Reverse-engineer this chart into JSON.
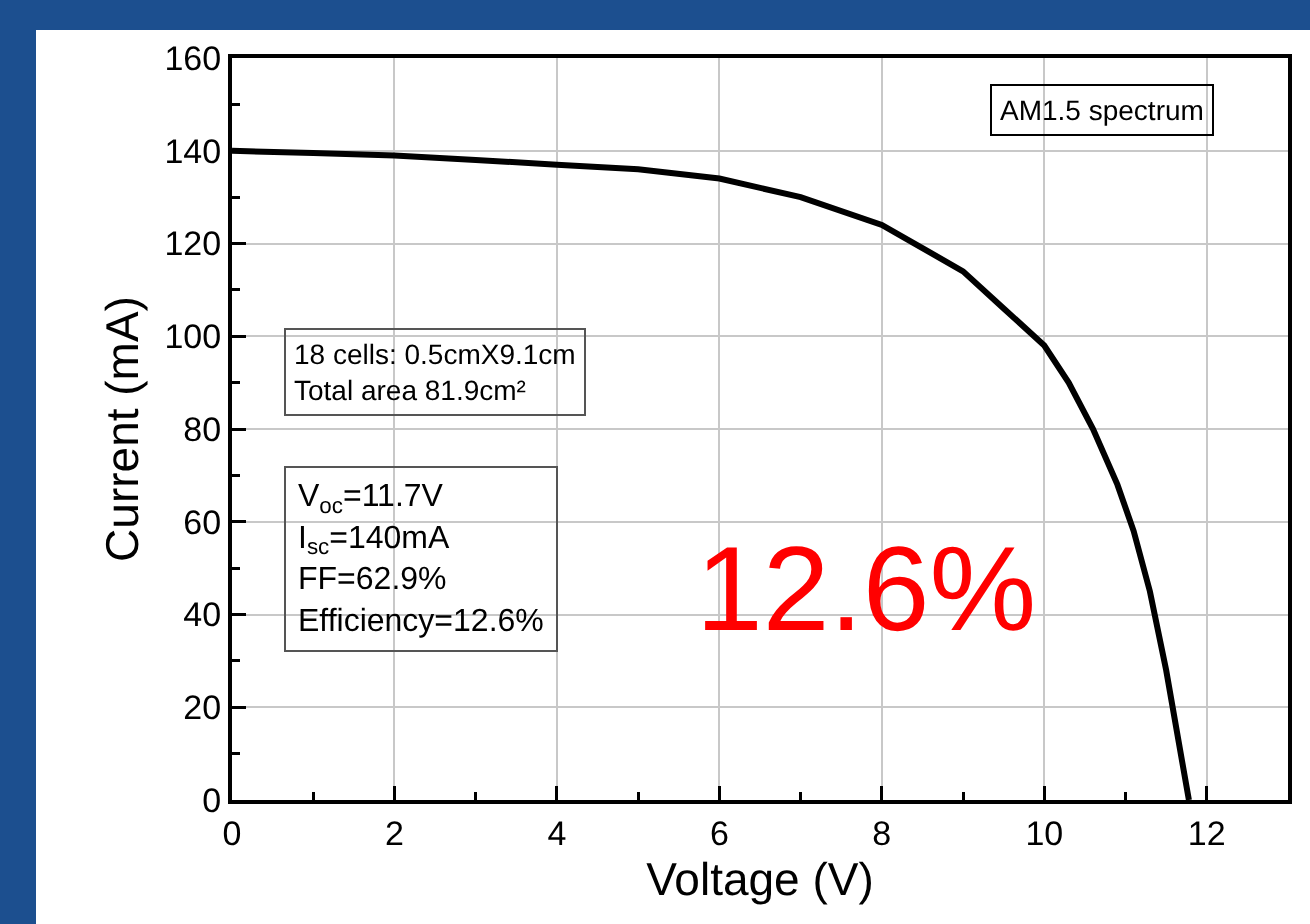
{
  "chart_data": {
    "type": "line",
    "xlabel": "Voltage (V)",
    "ylabel": "Current (mA)",
    "x": [
      0,
      1,
      2,
      3,
      4,
      5,
      6,
      7,
      8,
      8.5,
      9,
      9.5,
      10,
      10.3,
      10.6,
      10.9,
      11.1,
      11.3,
      11.5,
      11.7,
      11.78
    ],
    "series": [
      {
        "color": "#000000",
        "values": [
          140,
          139.5,
          139,
          138,
          137,
          136,
          134,
          130,
          124,
          119,
          114,
          106,
          98,
          90,
          80,
          68,
          58,
          45,
          28,
          8,
          0
        ]
      }
    ],
    "xlim": [
      0,
      13
    ],
    "xticks": [
      0,
      2,
      4,
      6,
      8,
      10,
      12
    ],
    "ylim": [
      0,
      160
    ],
    "yticks": [
      0,
      20,
      40,
      60,
      80,
      100,
      120,
      140,
      160
    ],
    "grid": true,
    "marker": "none",
    "line_style": "solid",
    "annotations": [
      "AM1.5 spectrum",
      "18 cells: 0.5cmX9.1cm\nTotal area 81.9cm²",
      "V$_{oc}$=11.7V\nI$_{sc}$=140mA\nFF=62.9%\nEfficiency=12.6%",
      "12.6%"
    ]
  }
}
